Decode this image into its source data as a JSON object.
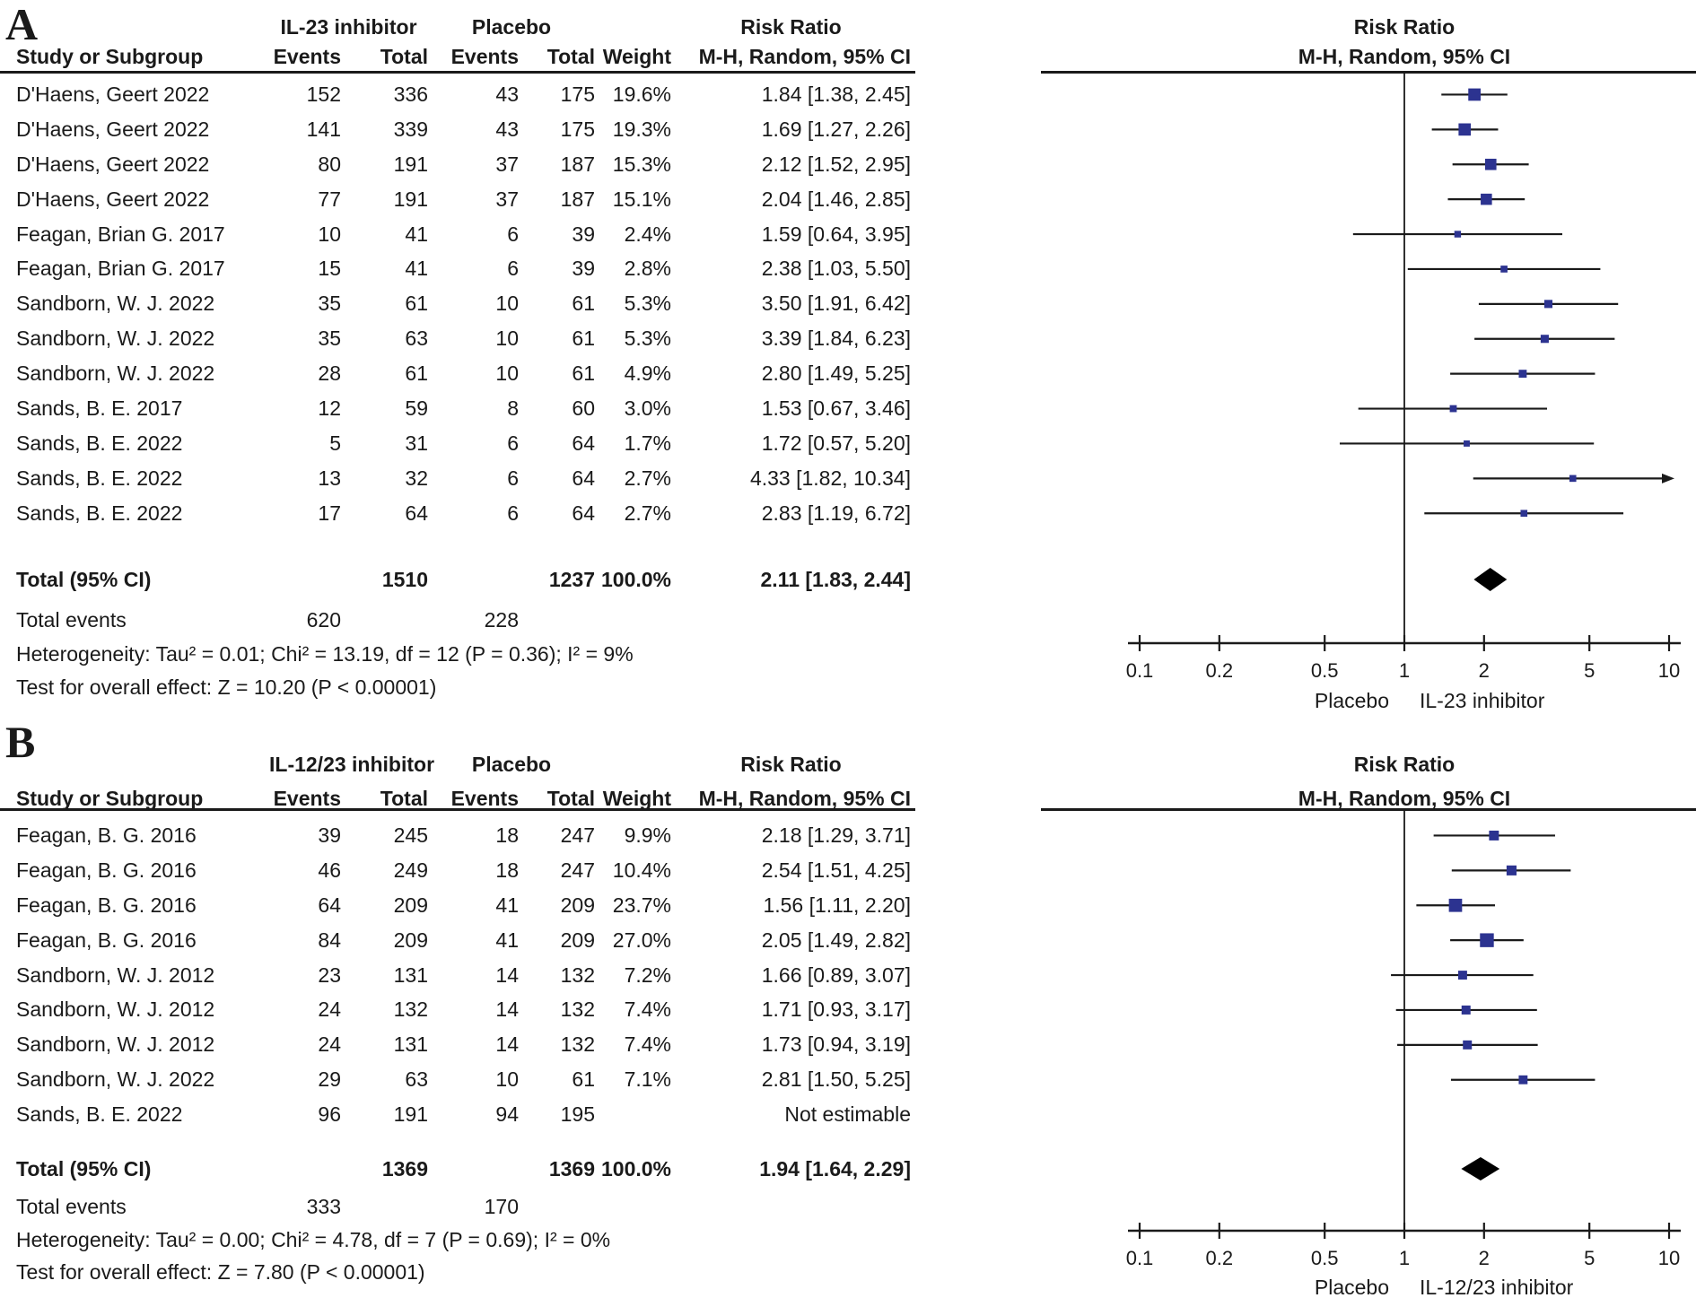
{
  "colors": {
    "marker": "#2c3390",
    "diamond": "#000000",
    "line": "#1a1a1a"
  },
  "chart_data": [
    {
      "type": "forest",
      "panel": "A",
      "experimental_label": "IL-23 inhibitor",
      "control_label": "Placebo",
      "effect_header": "Risk Ratio",
      "method_header": "M-H, Random, 95% CI",
      "columns": [
        "Study or Subgroup",
        "Events",
        "Total",
        "Events",
        "Total",
        "Weight",
        "M-H, Random, 95% CI"
      ],
      "studies": [
        {
          "name": "D'Haens, Geert 2022",
          "e_events": "152",
          "e_total": "336",
          "c_events": "43",
          "c_total": "175",
          "weight": "19.6%",
          "ci_text": "1.84 [1.38, 2.45]",
          "rr": 1.84,
          "lo": 1.38,
          "hi": 2.45
        },
        {
          "name": "D'Haens, Geert 2022",
          "e_events": "141",
          "e_total": "339",
          "c_events": "43",
          "c_total": "175",
          "weight": "19.3%",
          "ci_text": "1.69 [1.27, 2.26]",
          "rr": 1.69,
          "lo": 1.27,
          "hi": 2.26
        },
        {
          "name": "D'Haens, Geert 2022",
          "e_events": "80",
          "e_total": "191",
          "c_events": "37",
          "c_total": "187",
          "weight": "15.3%",
          "ci_text": "2.12 [1.52, 2.95]",
          "rr": 2.12,
          "lo": 1.52,
          "hi": 2.95
        },
        {
          "name": "D'Haens, Geert 2022",
          "e_events": "77",
          "e_total": "191",
          "c_events": "37",
          "c_total": "187",
          "weight": "15.1%",
          "ci_text": "2.04 [1.46, 2.85]",
          "rr": 2.04,
          "lo": 1.46,
          "hi": 2.85
        },
        {
          "name": "Feagan, Brian G. 2017",
          "e_events": "10",
          "e_total": "41",
          "c_events": "6",
          "c_total": "39",
          "weight": "2.4%",
          "ci_text": "1.59 [0.64, 3.95]",
          "rr": 1.59,
          "lo": 0.64,
          "hi": 3.95
        },
        {
          "name": "Feagan, Brian G. 2017",
          "e_events": "15",
          "e_total": "41",
          "c_events": "6",
          "c_total": "39",
          "weight": "2.8%",
          "ci_text": "2.38 [1.03, 5.50]",
          "rr": 2.38,
          "lo": 1.03,
          "hi": 5.5
        },
        {
          "name": "Sandborn, W. J. 2022",
          "e_events": "35",
          "e_total": "61",
          "c_events": "10",
          "c_total": "61",
          "weight": "5.3%",
          "ci_text": "3.50 [1.91, 6.42]",
          "rr": 3.5,
          "lo": 1.91,
          "hi": 6.42
        },
        {
          "name": "Sandborn, W. J. 2022",
          "e_events": "35",
          "e_total": "63",
          "c_events": "10",
          "c_total": "61",
          "weight": "5.3%",
          "ci_text": "3.39 [1.84, 6.23]",
          "rr": 3.39,
          "lo": 1.84,
          "hi": 6.23
        },
        {
          "name": "Sandborn, W. J. 2022",
          "e_events": "28",
          "e_total": "61",
          "c_events": "10",
          "c_total": "61",
          "weight": "4.9%",
          "ci_text": "2.80 [1.49, 5.25]",
          "rr": 2.8,
          "lo": 1.49,
          "hi": 5.25
        },
        {
          "name": "Sands, B. E. 2017",
          "e_events": "12",
          "e_total": "59",
          "c_events": "8",
          "c_total": "60",
          "weight": "3.0%",
          "ci_text": "1.53 [0.67, 3.46]",
          "rr": 1.53,
          "lo": 0.67,
          "hi": 3.46
        },
        {
          "name": "Sands, B. E. 2022",
          "e_events": "5",
          "e_total": "31",
          "c_events": "6",
          "c_total": "64",
          "weight": "1.7%",
          "ci_text": "1.72 [0.57, 5.20]",
          "rr": 1.72,
          "lo": 0.57,
          "hi": 5.2
        },
        {
          "name": "Sands, B. E. 2022",
          "e_events": "13",
          "e_total": "32",
          "c_events": "6",
          "c_total": "64",
          "weight": "2.7%",
          "ci_text": "4.33 [1.82, 10.34]",
          "rr": 4.33,
          "lo": 1.82,
          "hi": 10.34
        },
        {
          "name": "Sands, B. E. 2022",
          "e_events": "17",
          "e_total": "64",
          "c_events": "6",
          "c_total": "64",
          "weight": "2.7%",
          "ci_text": "2.83 [1.19, 6.72]",
          "rr": 2.83,
          "lo": 1.19,
          "hi": 6.72
        }
      ],
      "total": {
        "label": "Total (95% CI)",
        "e_total": "1510",
        "c_total": "1237",
        "weight": "100.0%",
        "ci_text": "2.11 [1.83, 2.44]",
        "rr": 2.11,
        "lo": 1.83,
        "hi": 2.44
      },
      "total_events": {
        "label": "Total events",
        "experimental": "620",
        "control": "228"
      },
      "heterogeneity": "Heterogeneity: Tau² = 0.01; Chi² = 13.19, df = 12 (P = 0.36); I² = 9%",
      "overall_effect": "Test for overall effect: Z = 10.20 (P < 0.00001)",
      "axis": {
        "scale": "log",
        "min": 0.1,
        "max": 10,
        "ticks": [
          "0.1",
          "0.2",
          "0.5",
          "1",
          "2",
          "5",
          "10"
        ],
        "left_label": "Placebo",
        "right_label": "IL-23 inhibitor"
      }
    },
    {
      "type": "forest",
      "panel": "B",
      "experimental_label": "IL-12/23 inhibitor",
      "control_label": "Placebo",
      "effect_header": "Risk Ratio",
      "method_header": "M-H, Random, 95% CI",
      "columns": [
        "Study or Subgroup",
        "Events",
        "Total",
        "Events",
        "Total",
        "Weight",
        "M-H, Random, 95% CI"
      ],
      "studies": [
        {
          "name": "Feagan, B. G. 2016",
          "e_events": "39",
          "e_total": "245",
          "c_events": "18",
          "c_total": "247",
          "weight": "9.9%",
          "ci_text": "2.18 [1.29, 3.71]",
          "rr": 2.18,
          "lo": 1.29,
          "hi": 3.71
        },
        {
          "name": "Feagan, B. G. 2016",
          "e_events": "46",
          "e_total": "249",
          "c_events": "18",
          "c_total": "247",
          "weight": "10.4%",
          "ci_text": "2.54 [1.51, 4.25]",
          "rr": 2.54,
          "lo": 1.51,
          "hi": 4.25
        },
        {
          "name": "Feagan, B. G. 2016",
          "e_events": "64",
          "e_total": "209",
          "c_events": "41",
          "c_total": "209",
          "weight": "23.7%",
          "ci_text": "1.56 [1.11, 2.20]",
          "rr": 1.56,
          "lo": 1.11,
          "hi": 2.2
        },
        {
          "name": "Feagan, B. G. 2016",
          "e_events": "84",
          "e_total": "209",
          "c_events": "41",
          "c_total": "209",
          "weight": "27.0%",
          "ci_text": "2.05 [1.49, 2.82]",
          "rr": 2.05,
          "lo": 1.49,
          "hi": 2.82
        },
        {
          "name": "Sandborn, W. J. 2012",
          "e_events": "23",
          "e_total": "131",
          "c_events": "14",
          "c_total": "132",
          "weight": "7.2%",
          "ci_text": "1.66 [0.89, 3.07]",
          "rr": 1.66,
          "lo": 0.89,
          "hi": 3.07
        },
        {
          "name": "Sandborn, W. J. 2012",
          "e_events": "24",
          "e_total": "132",
          "c_events": "14",
          "c_total": "132",
          "weight": "7.4%",
          "ci_text": "1.71 [0.93, 3.17]",
          "rr": 1.71,
          "lo": 0.93,
          "hi": 3.17
        },
        {
          "name": "Sandborn, W. J. 2012",
          "e_events": "24",
          "e_total": "131",
          "c_events": "14",
          "c_total": "132",
          "weight": "7.4%",
          "ci_text": "1.73 [0.94, 3.19]",
          "rr": 1.73,
          "lo": 0.94,
          "hi": 3.19
        },
        {
          "name": "Sandborn, W. J. 2022",
          "e_events": "29",
          "e_total": "63",
          "c_events": "10",
          "c_total": "61",
          "weight": "7.1%",
          "ci_text": "2.81 [1.50, 5.25]",
          "rr": 2.81,
          "lo": 1.5,
          "hi": 5.25
        },
        {
          "name": "Sands, B. E. 2022",
          "e_events": "96",
          "e_total": "191",
          "c_events": "94",
          "c_total": "195",
          "weight": "",
          "ci_text": "Not estimable",
          "rr": null,
          "lo": null,
          "hi": null
        }
      ],
      "total": {
        "label": "Total (95% CI)",
        "e_total": "1369",
        "c_total": "1369",
        "weight": "100.0%",
        "ci_text": "1.94 [1.64, 2.29]",
        "rr": 1.94,
        "lo": 1.64,
        "hi": 2.29
      },
      "total_events": {
        "label": "Total events",
        "experimental": "333",
        "control": "170"
      },
      "heterogeneity": "Heterogeneity: Tau² = 0.00; Chi² = 4.78, df = 7 (P = 0.69); I² = 0%",
      "overall_effect": "Test for overall effect: Z = 7.80 (P < 0.00001)",
      "axis": {
        "scale": "log",
        "min": 0.1,
        "max": 10,
        "ticks": [
          "0.1",
          "0.2",
          "0.5",
          "1",
          "2",
          "5",
          "10"
        ],
        "left_label": "Placebo",
        "right_label": "IL-12/23 inhibitor"
      }
    }
  ]
}
